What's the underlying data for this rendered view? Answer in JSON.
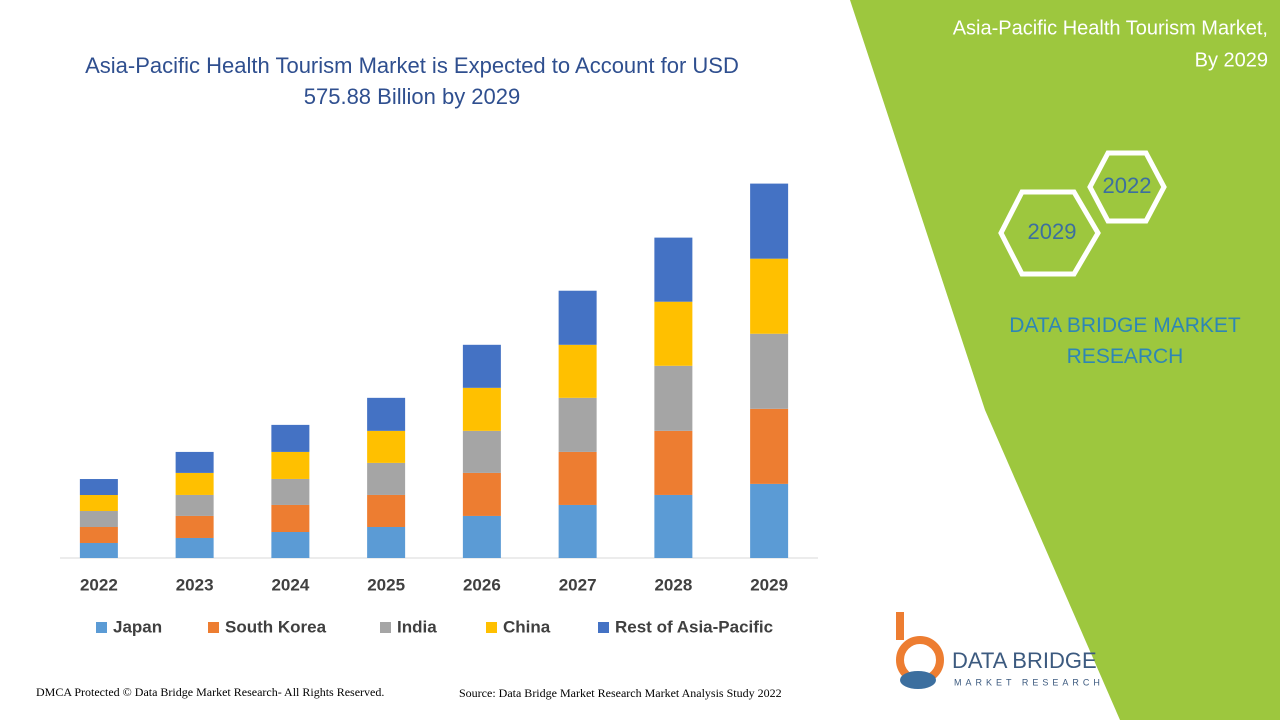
{
  "chart_data": {
    "type": "stacked-bar",
    "title": "Asia-Pacific Health Tourism Market is Expected to Account for USD 575.88 Billion by 2029",
    "categories": [
      "2022",
      "2023",
      "2024",
      "2025",
      "2026",
      "2027",
      "2028",
      "2029"
    ],
    "series": [
      {
        "name": "Japan",
        "color": "#5b9bd5",
        "values": [
          23.1,
          30.8,
          40.0,
          47.7,
          64.7,
          81.6,
          97.0,
          114.0
        ]
      },
      {
        "name": "South Korea",
        "color": "#ed7d31",
        "values": [
          24.6,
          33.9,
          41.6,
          49.3,
          66.2,
          81.6,
          98.6,
          115.5
        ]
      },
      {
        "name": "India",
        "color": "#a5a5a5",
        "values": [
          24.6,
          32.3,
          40.0,
          49.3,
          64.7,
          83.2,
          100.1,
          115.5
        ]
      },
      {
        "name": "China",
        "color": "#ffc000",
        "values": [
          24.6,
          33.9,
          41.6,
          49.3,
          66.2,
          81.6,
          98.6,
          115.5
        ]
      },
      {
        "name": "Rest of Asia-Pacific",
        "color": "#4472c4",
        "values": [
          24.6,
          32.3,
          41.6,
          50.8,
          66.2,
          83.2,
          98.6,
          115.5
        ]
      }
    ],
    "ylim": [
      0,
      600
    ]
  },
  "side_panel": {
    "title": "Asia-Pacific Health Tourism Market,",
    "subtitle": "By 2029",
    "hexagon_1": "2022",
    "hexagon_2": "2029",
    "brand": "DATA BRIDGE MARKET RESEARCH"
  },
  "logo": {
    "name": "DATA BRIDGE",
    "tagline": "MARKET RESEARCH"
  },
  "footer": {
    "left": "DMCA Protected © Data Bridge Market Research- All Rights Reserved.",
    "right": "Source: Data Bridge Market Research Market Analysis Study 2022"
  }
}
